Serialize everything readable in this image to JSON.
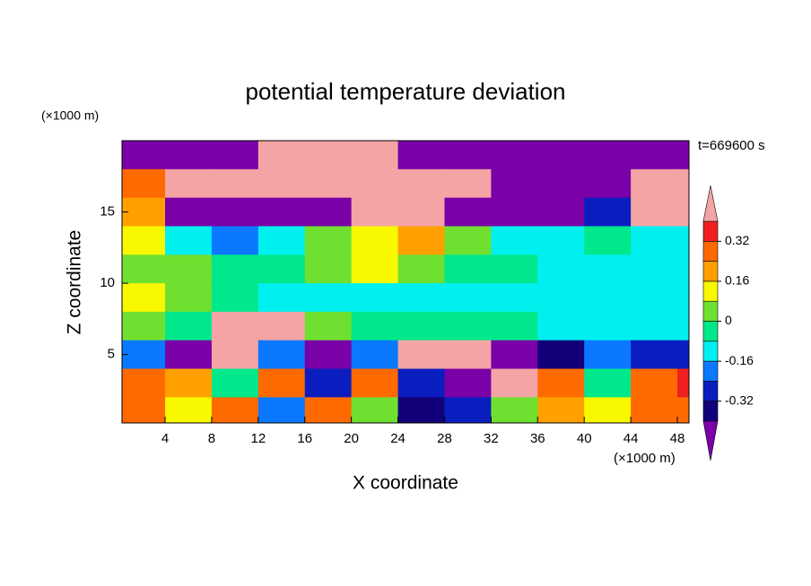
{
  "chart_data": {
    "type": "contour",
    "title": "potential temperature deviation",
    "x_label": "X coordinate",
    "y_label": "Z coordinate",
    "x_unit": "(×1000 m)",
    "y_unit": "(×1000 m)",
    "time_label": "t=669600 s",
    "xlim": [
      0.3,
      49
    ],
    "ylim": [
      0.2,
      20
    ],
    "xticks": [
      4,
      8,
      12,
      16,
      20,
      24,
      28,
      32,
      36,
      40,
      44,
      48
    ],
    "yticks": [
      5,
      10,
      15
    ],
    "x": [
      2,
      6,
      10,
      14,
      18,
      22,
      26,
      30,
      34,
      38,
      42,
      46,
      50
    ],
    "y": [
      19,
      17,
      15,
      13,
      11,
      9,
      7,
      5,
      3,
      1
    ],
    "z": [
      [
        -0.5,
        -0.5,
        -0.5,
        0.5,
        0.5,
        0.5,
        -0.5,
        -0.5,
        -0.5,
        -0.5,
        -0.5,
        -0.5,
        -0.5
      ],
      [
        0.3,
        0.5,
        0.5,
        0.5,
        0.5,
        0.5,
        0.5,
        0.45,
        -0.5,
        -0.5,
        -0.5,
        0.5,
        0.5
      ],
      [
        0.2,
        -0.5,
        -0.5,
        -0.5,
        -0.45,
        0.5,
        0.45,
        -0.5,
        -0.5,
        -0.5,
        -0.3,
        0.5,
        0.5
      ],
      [
        0.1,
        -0.15,
        -0.2,
        -0.1,
        0.05,
        0.15,
        0.2,
        0.05,
        -0.1,
        -0.1,
        -0.05,
        -0.1,
        -0.1
      ],
      [
        0.05,
        0.05,
        0,
        -0.02,
        0.05,
        0.1,
        0.05,
        0,
        -0.05,
        -0.1,
        -0.1,
        -0.12,
        -0.12
      ],
      [
        0.1,
        0.05,
        -0.05,
        -0.1,
        -0.1,
        -0.1,
        -0.1,
        -0.12,
        -0.15,
        -0.15,
        -0.12,
        -0.1,
        -0.1
      ],
      [
        0.05,
        0,
        0.45,
        0.5,
        0.05,
        -0.05,
        0,
        -0.05,
        0,
        -0.1,
        -0.1,
        -0.1,
        -0.1
      ],
      [
        -0.2,
        -0.45,
        0.45,
        -0.2,
        -0.45,
        -0.2,
        0.45,
        0.45,
        -0.45,
        -0.35,
        -0.2,
        -0.3,
        -0.3
      ],
      [
        0.3,
        0.2,
        0,
        0.25,
        -0.3,
        0.3,
        -0.3,
        -0.4,
        0.5,
        0.3,
        0,
        0.3,
        0.4
      ],
      [
        0.3,
        0.1,
        0.25,
        -0.2,
        0.3,
        0.05,
        -0.35,
        -0.3,
        0.05,
        0.2,
        0.1,
        0.3,
        0.3
      ]
    ],
    "levels": [
      -0.4,
      -0.32,
      -0.24,
      -0.16,
      -0.08,
      0,
      0.08,
      0.16,
      0.24,
      0.32,
      0.4
    ],
    "colors": [
      "#7a00a8",
      "#12007a",
      "#0a1ec0",
      "#0a78ff",
      "#00f0f0",
      "#00e88c",
      "#70e030",
      "#f8f800",
      "#ffa000",
      "#ff6a00",
      "#f02020",
      "#f4a4a4"
    ],
    "colorbar_ticks": [
      -0.32,
      -0.16,
      0,
      0.16,
      0.32
    ]
  }
}
